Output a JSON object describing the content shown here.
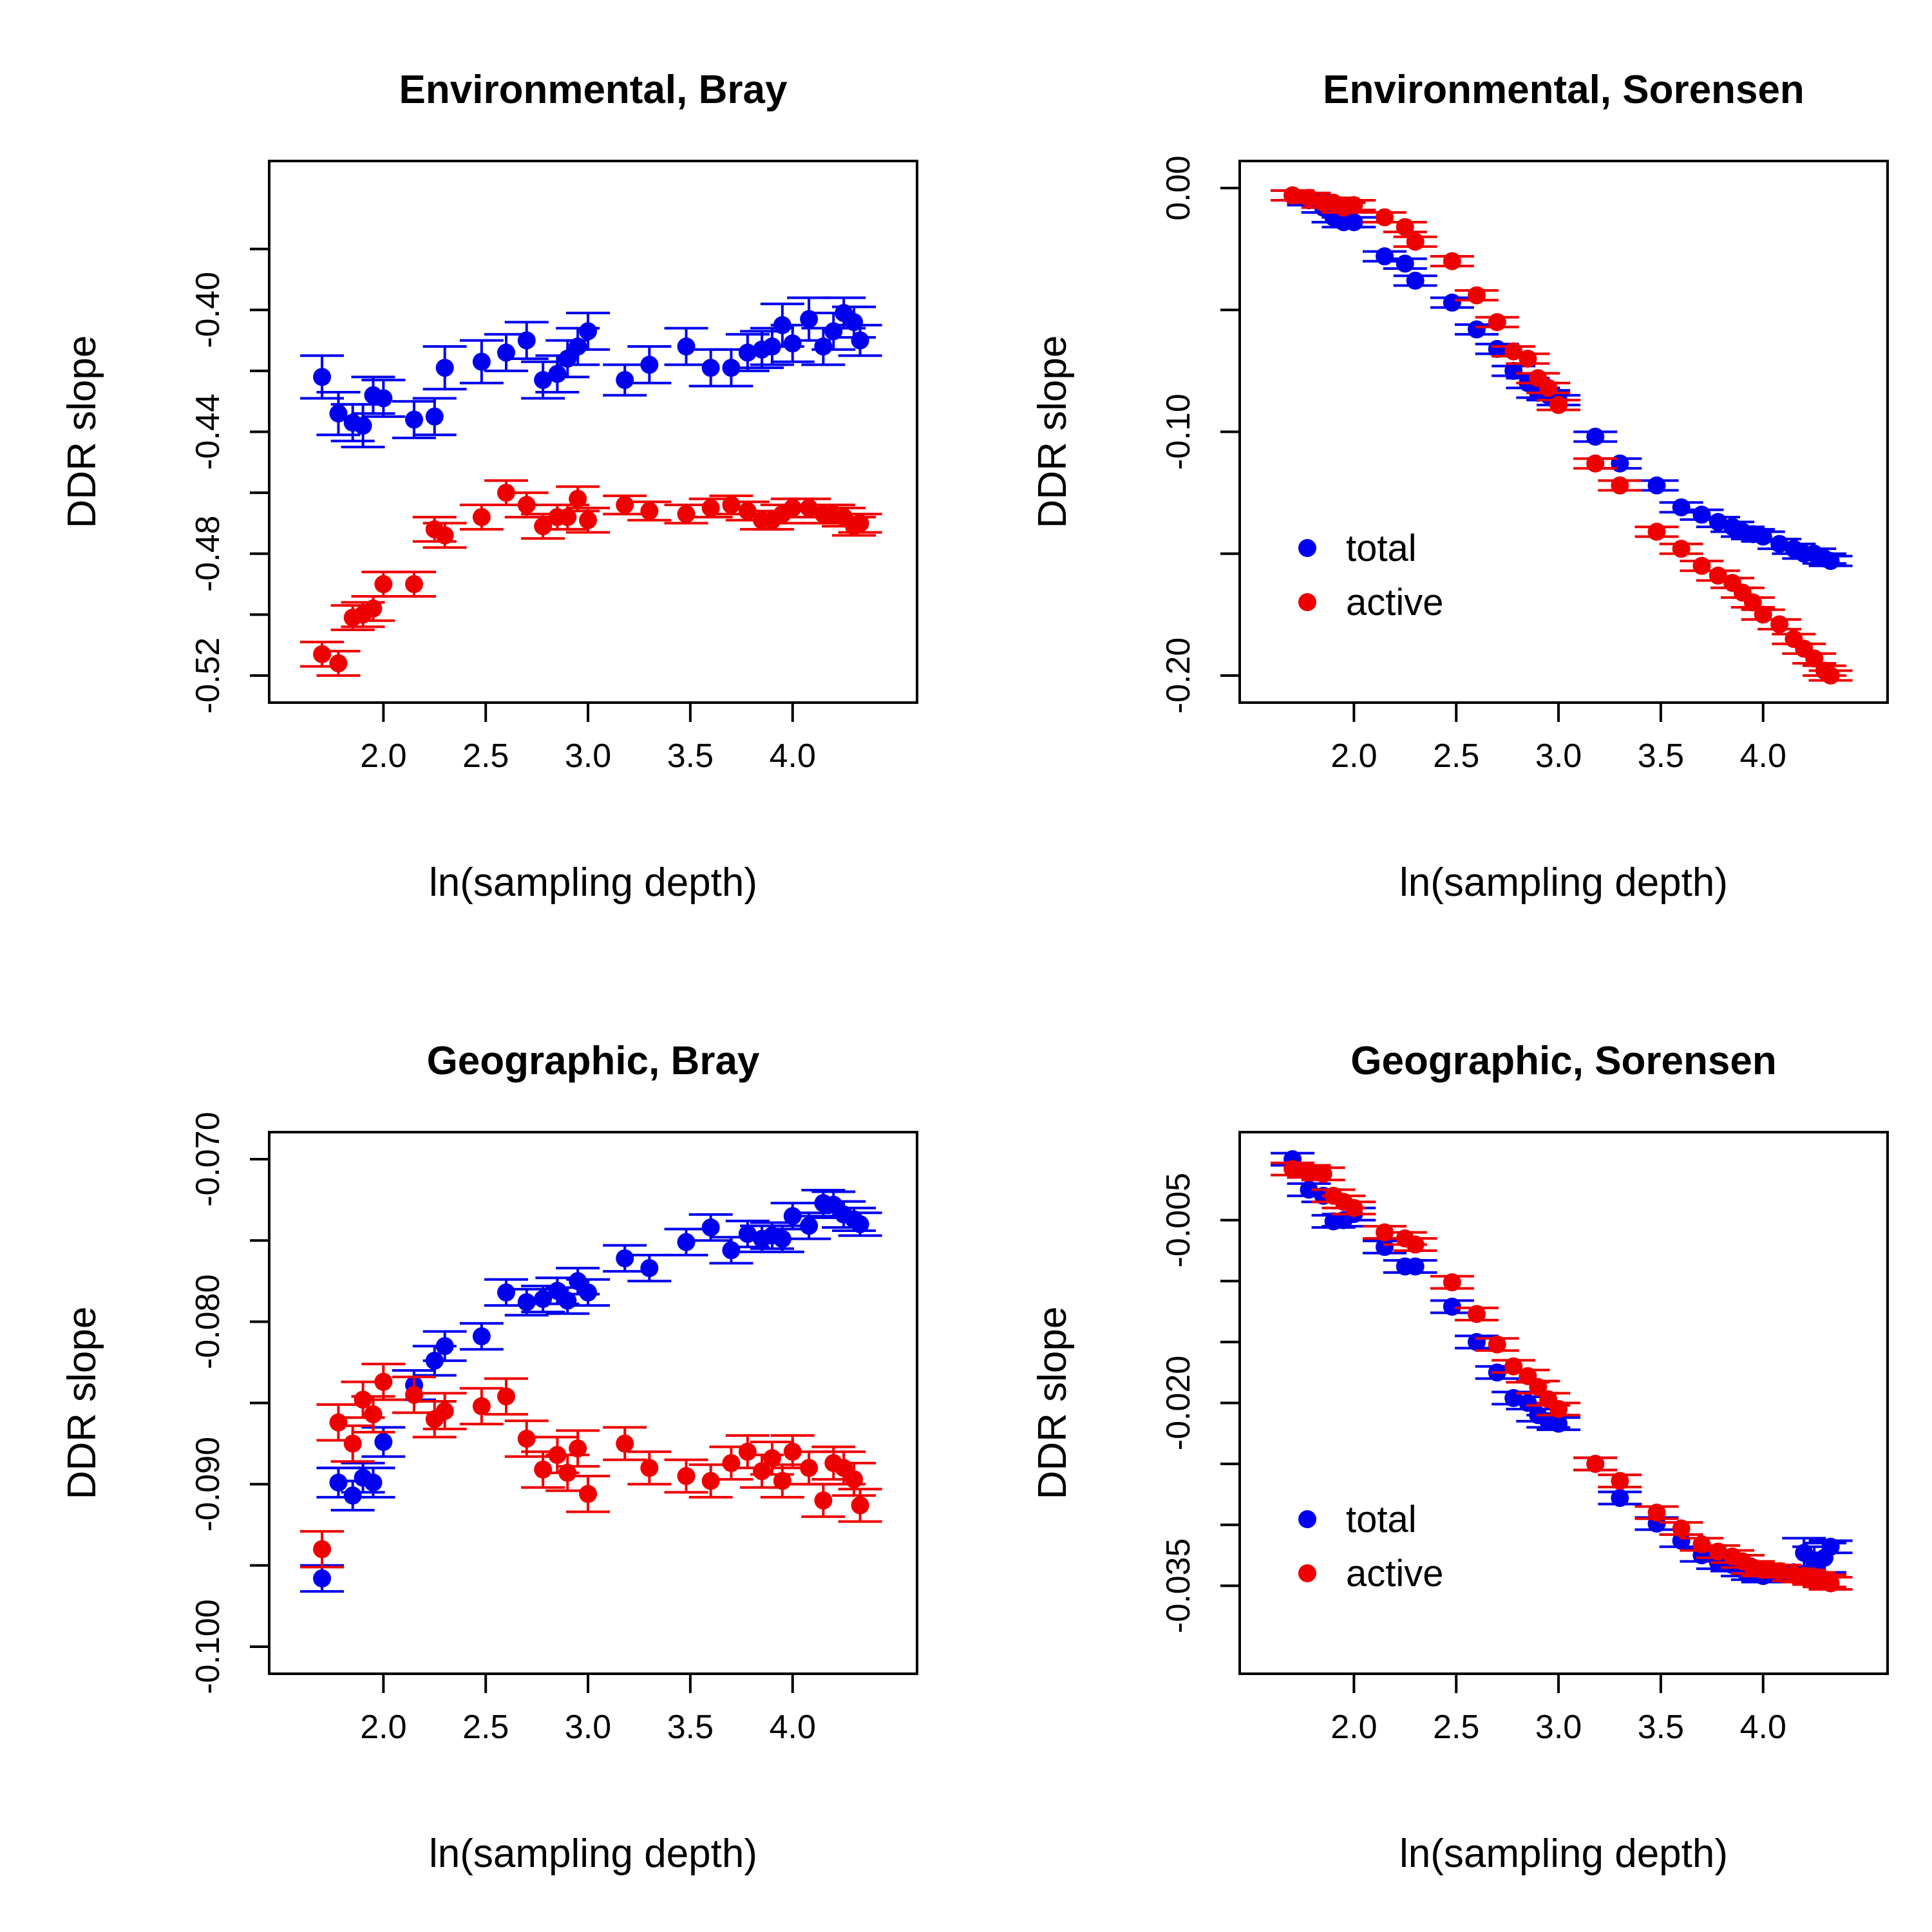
{
  "colors": {
    "total": "#0000ee",
    "active": "#ee0000",
    "axis": "#000000"
  },
  "chart_data": [
    {
      "type": "scatter",
      "title": "Environmental, Bray",
      "xlabel": "ln(sampling depth)",
      "ylabel": "DDR slope",
      "xlim": [
        1.6,
        4.45
      ],
      "ylim": [
        -0.52,
        -0.36
      ],
      "xticks": [
        2.0,
        2.5,
        3.0,
        3.5,
        4.0
      ],
      "xtick_labels": [
        "2.0",
        "2.5",
        "3.0",
        "3.5",
        "4.0"
      ],
      "yticks": [
        -0.52,
        -0.5,
        -0.48,
        -0.46,
        -0.44,
        -0.42,
        -0.4,
        -0.38
      ],
      "ytick_labels": [
        "-0.52",
        "",
        "-0.48",
        "",
        "-0.44",
        "",
        "-0.40",
        ""
      ],
      "legend": null,
      "series": [
        {
          "name": "total",
          "x": [
            1.7,
            1.78,
            1.85,
            1.9,
            1.95,
            2.0,
            2.15,
            2.25,
            2.3,
            2.48,
            2.6,
            2.7,
            2.78,
            2.85,
            2.9,
            2.95,
            3.0,
            3.18,
            3.3,
            3.48,
            3.6,
            3.7,
            3.78,
            3.85,
            3.9,
            3.95,
            4.0,
            4.08,
            4.15,
            4.2,
            4.25,
            4.3,
            4.33
          ],
          "y": [
            -0.422,
            -0.434,
            -0.437,
            -0.438,
            -0.428,
            -0.429,
            -0.436,
            -0.435,
            -0.419,
            -0.417,
            -0.414,
            -0.41,
            -0.423,
            -0.421,
            -0.416,
            -0.412,
            -0.407,
            -0.423,
            -0.418,
            -0.412,
            -0.419,
            -0.419,
            -0.414,
            -0.413,
            -0.412,
            -0.405,
            -0.411,
            -0.403,
            -0.412,
            -0.407,
            -0.401,
            -0.404,
            -0.41
          ],
          "err": [
            0.007,
            0.007,
            0.006,
            0.007,
            0.006,
            0.006,
            0.006,
            0.006,
            0.007,
            0.007,
            0.006,
            0.006,
            0.006,
            0.006,
            0.006,
            0.006,
            0.006,
            0.005,
            0.006,
            0.006,
            0.006,
            0.006,
            0.006,
            0.006,
            0.006,
            0.007,
            0.006,
            0.007,
            0.006,
            0.006,
            0.005,
            0.005,
            0.005
          ]
        },
        {
          "name": "active",
          "x": [
            1.7,
            1.78,
            1.85,
            1.9,
            1.95,
            2.0,
            2.15,
            2.25,
            2.3,
            2.48,
            2.6,
            2.7,
            2.78,
            2.85,
            2.9,
            2.95,
            3.0,
            3.18,
            3.3,
            3.48,
            3.6,
            3.7,
            3.78,
            3.85,
            3.9,
            3.95,
            4.0,
            4.08,
            4.15,
            4.2,
            4.25,
            4.3,
            4.33
          ],
          "y": [
            -0.513,
            -0.516,
            -0.501,
            -0.5,
            -0.498,
            -0.49,
            -0.49,
            -0.472,
            -0.474,
            -0.468,
            -0.46,
            -0.464,
            -0.471,
            -0.468,
            -0.468,
            -0.462,
            -0.469,
            -0.464,
            -0.466,
            -0.467,
            -0.465,
            -0.464,
            -0.466,
            -0.469,
            -0.469,
            -0.467,
            -0.465,
            -0.465,
            -0.467,
            -0.467,
            -0.468,
            -0.471,
            -0.47
          ],
          "err": [
            0.004,
            0.004,
            0.004,
            0.004,
            0.004,
            0.004,
            0.004,
            0.004,
            0.004,
            0.004,
            0.004,
            0.004,
            0.004,
            0.004,
            0.004,
            0.004,
            0.004,
            0.003,
            0.003,
            0.003,
            0.003,
            0.003,
            0.003,
            0.003,
            0.003,
            0.003,
            0.003,
            0.003,
            0.003,
            0.003,
            0.003,
            0.003,
            0.003
          ]
        }
      ]
    },
    {
      "type": "scatter",
      "title": "Environmental, Sorensen",
      "xlabel": "ln(sampling depth)",
      "ylabel": "DDR slope",
      "xlim": [
        1.6,
        4.45
      ],
      "ylim": [
        -0.2,
        0.0
      ],
      "xticks": [
        2.0,
        2.5,
        3.0,
        3.5,
        4.0
      ],
      "xtick_labels": [
        "2.0",
        "2.5",
        "3.0",
        "3.5",
        "4.0"
      ],
      "yticks": [
        0.0,
        -0.05,
        -0.1,
        -0.15,
        -0.2
      ],
      "ytick_labels": [
        "0.00",
        "",
        "-0.10",
        "",
        "-0.20"
      ],
      "legend": {
        "position": "bottom-left",
        "entries": [
          "total",
          "active"
        ]
      },
      "series": [
        {
          "name": "total",
          "x": [
            1.7,
            1.78,
            1.85,
            1.9,
            1.95,
            2.0,
            2.15,
            2.25,
            2.3,
            2.48,
            2.6,
            2.7,
            2.78,
            2.85,
            2.9,
            2.95,
            3.0,
            3.18,
            3.3,
            3.48,
            3.6,
            3.7,
            3.78,
            3.85,
            3.9,
            3.95,
            4.0,
            4.08,
            4.15,
            4.2,
            4.25,
            4.3,
            4.33
          ],
          "y": [
            -0.003,
            -0.005,
            -0.008,
            -0.012,
            -0.014,
            -0.014,
            -0.028,
            -0.031,
            -0.038,
            -0.047,
            -0.058,
            -0.066,
            -0.075,
            -0.08,
            -0.084,
            -0.085,
            -0.087,
            -0.102,
            -0.113,
            -0.122,
            -0.131,
            -0.134,
            -0.137,
            -0.139,
            -0.141,
            -0.142,
            -0.143,
            -0.146,
            -0.148,
            -0.15,
            -0.15,
            -0.152,
            -0.153
          ],
          "err": [
            0.002,
            0.002,
            0.002,
            0.002,
            0.002,
            0.002,
            0.002,
            0.002,
            0.002,
            0.002,
            0.002,
            0.002,
            0.002,
            0.002,
            0.002,
            0.002,
            0.002,
            0.002,
            0.002,
            0.002,
            0.002,
            0.002,
            0.002,
            0.002,
            0.002,
            0.002,
            0.002,
            0.002,
            0.002,
            0.002,
            0.002,
            0.002,
            0.002
          ]
        },
        {
          "name": "active",
          "x": [
            1.7,
            1.78,
            1.85,
            1.9,
            1.95,
            2.0,
            2.15,
            2.25,
            2.3,
            2.48,
            2.6,
            2.7,
            2.78,
            2.85,
            2.9,
            2.95,
            3.0,
            3.18,
            3.3,
            3.48,
            3.6,
            3.7,
            3.78,
            3.85,
            3.9,
            3.95,
            4.0,
            4.08,
            4.15,
            4.2,
            4.25,
            4.3,
            4.33
          ],
          "y": [
            -0.003,
            -0.004,
            -0.006,
            -0.006,
            -0.008,
            -0.007,
            -0.012,
            -0.016,
            -0.022,
            -0.03,
            -0.044,
            -0.055,
            -0.067,
            -0.07,
            -0.078,
            -0.082,
            -0.089,
            -0.113,
            -0.122,
            -0.141,
            -0.148,
            -0.155,
            -0.159,
            -0.162,
            -0.166,
            -0.17,
            -0.175,
            -0.179,
            -0.185,
            -0.189,
            -0.193,
            -0.198,
            -0.2
          ],
          "err": [
            0.002,
            0.002,
            0.002,
            0.002,
            0.002,
            0.002,
            0.002,
            0.002,
            0.002,
            0.002,
            0.002,
            0.002,
            0.002,
            0.002,
            0.002,
            0.002,
            0.002,
            0.002,
            0.002,
            0.002,
            0.002,
            0.002,
            0.002,
            0.002,
            0.002,
            0.002,
            0.002,
            0.002,
            0.002,
            0.002,
            0.002,
            0.002,
            0.002
          ]
        }
      ]
    },
    {
      "type": "scatter",
      "title": "Geographic, Bray",
      "xlabel": "ln(sampling depth)",
      "ylabel": "DDR slope",
      "xlim": [
        1.6,
        4.45
      ],
      "ylim": [
        -0.1,
        -0.07
      ],
      "xticks": [
        2.0,
        2.5,
        3.0,
        3.5,
        4.0
      ],
      "xtick_labels": [
        "2.0",
        "2.5",
        "3.0",
        "3.5",
        "4.0"
      ],
      "yticks": [
        -0.1,
        -0.095,
        -0.09,
        -0.085,
        -0.08,
        -0.075,
        -0.07
      ],
      "ytick_labels": [
        "-0.100",
        "",
        "-0.090",
        "",
        "-0.080",
        "",
        "-0.070"
      ],
      "legend": null,
      "series": [
        {
          "name": "total",
          "x": [
            1.7,
            1.78,
            1.85,
            1.9,
            1.95,
            2.0,
            2.15,
            2.25,
            2.3,
            2.48,
            2.6,
            2.7,
            2.78,
            2.85,
            2.9,
            2.95,
            3.0,
            3.18,
            3.3,
            3.48,
            3.6,
            3.7,
            3.78,
            3.85,
            3.9,
            3.95,
            4.0,
            4.08,
            4.15,
            4.2,
            4.25,
            4.3,
            4.33
          ],
          "y": [
            -0.0958,
            -0.0899,
            -0.0907,
            -0.0896,
            -0.0899,
            -0.0874,
            -0.0839,
            -0.0824,
            -0.0815,
            -0.0809,
            -0.0782,
            -0.0788,
            -0.0786,
            -0.0781,
            -0.0787,
            -0.0775,
            -0.0782,
            -0.0761,
            -0.0767,
            -0.0751,
            -0.0742,
            -0.0756,
            -0.0746,
            -0.0749,
            -0.0747,
            -0.0749,
            -0.0735,
            -0.0741,
            -0.0727,
            -0.0728,
            -0.0734,
            -0.0737,
            -0.074
          ],
          "err": [
            0.0008,
            0.0009,
            0.0009,
            0.0009,
            0.0009,
            0.0009,
            0.0009,
            0.0009,
            0.0009,
            0.0008,
            0.0008,
            0.0008,
            0.0008,
            0.0008,
            0.0008,
            0.0008,
            0.0008,
            0.0008,
            0.0008,
            0.0008,
            0.0008,
            0.0008,
            0.0008,
            0.0008,
            0.0008,
            0.0008,
            0.0008,
            0.0008,
            0.0008,
            0.0008,
            0.0008,
            0.0007,
            0.0007
          ]
        },
        {
          "name": "active",
          "x": [
            1.7,
            1.78,
            1.85,
            1.9,
            1.95,
            2.0,
            2.15,
            2.25,
            2.3,
            2.48,
            2.6,
            2.7,
            2.78,
            2.85,
            2.9,
            2.95,
            3.0,
            3.18,
            3.3,
            3.48,
            3.6,
            3.7,
            3.78,
            3.85,
            3.9,
            3.95,
            4.0,
            4.08,
            4.15,
            4.2,
            4.25,
            4.3,
            4.33
          ],
          "y": [
            -0.094,
            -0.0862,
            -0.0875,
            -0.0848,
            -0.0857,
            -0.0837,
            -0.0845,
            -0.086,
            -0.0855,
            -0.0852,
            -0.0846,
            -0.0872,
            -0.0891,
            -0.0882,
            -0.0893,
            -0.0878,
            -0.0906,
            -0.0875,
            -0.089,
            -0.0895,
            -0.0898,
            -0.0887,
            -0.088,
            -0.0892,
            -0.0884,
            -0.0898,
            -0.088,
            -0.089,
            -0.091,
            -0.0887,
            -0.089,
            -0.0897,
            -0.0913
          ],
          "err": [
            0.0011,
            0.0011,
            0.0011,
            0.0011,
            0.0011,
            0.0011,
            0.0011,
            0.0011,
            0.0011,
            0.0011,
            0.0011,
            0.0011,
            0.0011,
            0.0011,
            0.0011,
            0.0011,
            0.0011,
            0.001,
            0.001,
            0.001,
            0.001,
            0.001,
            0.001,
            0.001,
            0.001,
            0.001,
            0.001,
            0.001,
            0.001,
            0.001,
            0.001,
            0.001,
            0.001
          ]
        }
      ]
    },
    {
      "type": "scatter",
      "title": "Geographic, Sorensen",
      "xlabel": "ln(sampling depth)",
      "ylabel": "DDR slope",
      "xlim": [
        1.6,
        4.45
      ],
      "ylim": [
        -0.04,
        0.0
      ],
      "xticks": [
        2.0,
        2.5,
        3.0,
        3.5,
        4.0
      ],
      "xtick_labels": [
        "2.0",
        "2.5",
        "3.0",
        "3.5",
        "4.0"
      ],
      "yticks": [
        -0.005,
        -0.01,
        -0.015,
        -0.02,
        -0.025,
        -0.03,
        -0.035
      ],
      "ytick_labels": [
        "-0.005",
        "",
        "",
        "-0.020",
        "",
        "",
        "-0.035"
      ],
      "legend": {
        "position": "bottom-left",
        "entries": [
          "total",
          "active"
        ]
      },
      "series": [
        {
          "name": "total",
          "x": [
            1.7,
            1.78,
            1.85,
            1.9,
            1.95,
            2.0,
            2.15,
            2.25,
            2.3,
            2.48,
            2.6,
            2.7,
            2.78,
            2.85,
            2.9,
            2.95,
            3.0,
            3.18,
            3.3,
            3.48,
            3.6,
            3.7,
            3.78,
            3.85,
            3.9,
            3.95,
            4.0,
            4.08,
            4.15,
            4.2,
            4.25,
            4.3,
            4.33
          ],
          "y": [
            0.0,
            -0.0025,
            -0.003,
            -0.0051,
            -0.005,
            -0.0045,
            -0.0072,
            -0.0088,
            -0.0088,
            -0.0121,
            -0.015,
            -0.0175,
            -0.0196,
            -0.02,
            -0.021,
            -0.0215,
            -0.0217,
            -0.025,
            -0.0278,
            -0.0299,
            -0.0313,
            -0.0325,
            -0.0331,
            -0.0333,
            -0.0337,
            -0.034,
            -0.0342,
            -0.034,
            -0.0339,
            -0.0323,
            -0.033,
            -0.0327,
            -0.0318
          ],
          "err": [
            0.0005,
            0.0005,
            0.0005,
            0.0005,
            0.0005,
            0.0005,
            0.0005,
            0.0005,
            0.0005,
            0.0005,
            0.0005,
            0.0005,
            0.0005,
            0.0005,
            0.0005,
            0.0005,
            0.0005,
            0.0005,
            0.0005,
            0.0005,
            0.0005,
            0.0005,
            0.0005,
            0.0005,
            0.0005,
            0.0005,
            0.0005,
            0.0005,
            0.0005,
            0.0012,
            0.0012,
            0.0012,
            0.0005
          ]
        },
        {
          "name": "active",
          "x": [
            1.7,
            1.78,
            1.85,
            1.9,
            1.95,
            2.0,
            2.15,
            2.25,
            2.3,
            2.48,
            2.6,
            2.7,
            2.78,
            2.85,
            2.9,
            2.95,
            3.0,
            3.18,
            3.3,
            3.48,
            3.6,
            3.7,
            3.78,
            3.85,
            3.9,
            3.95,
            4.0,
            4.08,
            4.15,
            4.2,
            4.25,
            4.3,
            4.33
          ],
          "y": [
            -0.0008,
            -0.001,
            -0.0012,
            -0.003,
            -0.0035,
            -0.004,
            -0.006,
            -0.0065,
            -0.007,
            -0.0101,
            -0.0127,
            -0.0152,
            -0.017,
            -0.0178,
            -0.0187,
            -0.0197,
            -0.0205,
            -0.025,
            -0.0264,
            -0.029,
            -0.0303,
            -0.0316,
            -0.0322,
            -0.0326,
            -0.033,
            -0.0335,
            -0.0337,
            -0.0338,
            -0.0341,
            -0.0342,
            -0.0344,
            -0.0346,
            -0.0348
          ],
          "err": [
            0.0005,
            0.0005,
            0.0005,
            0.0005,
            0.0005,
            0.0005,
            0.0005,
            0.0005,
            0.0005,
            0.0005,
            0.0005,
            0.0005,
            0.0005,
            0.0005,
            0.0005,
            0.0005,
            0.0005,
            0.0005,
            0.0005,
            0.0005,
            0.0005,
            0.0005,
            0.0005,
            0.0005,
            0.0005,
            0.0005,
            0.0005,
            0.0005,
            0.0005,
            0.0005,
            0.0005,
            0.0005,
            0.0005
          ]
        }
      ]
    }
  ]
}
